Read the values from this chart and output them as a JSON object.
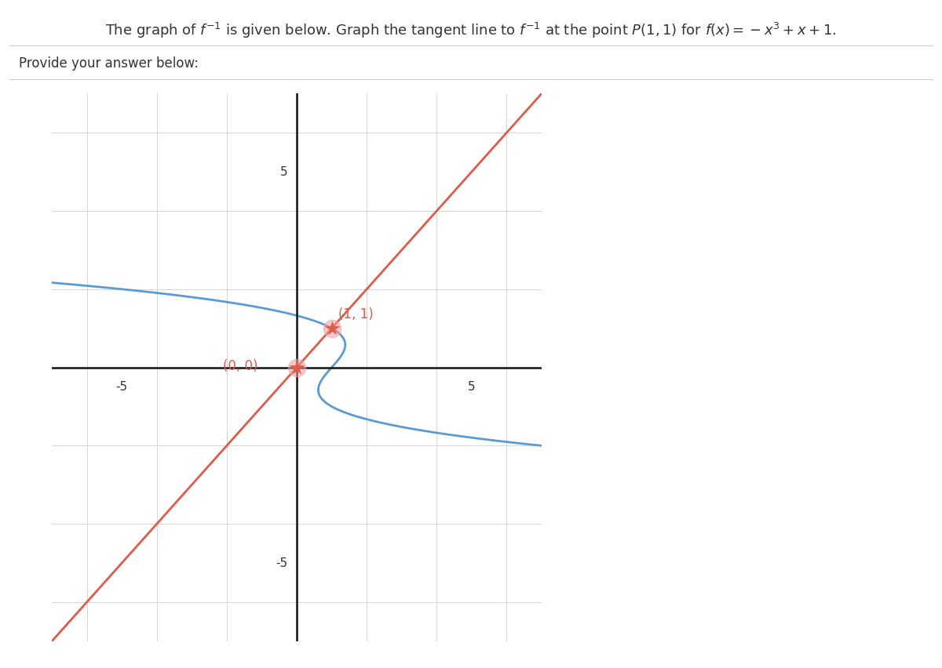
{
  "title_text": "The graph of $f^{-1}$ is given below. Graph the tangent line to $f^{-1}$ at the point $P(1, 1)$ for $f(x) = -x^3 + x + 1$.",
  "subtitle_text": "Provide your answer below:",
  "xlim": [
    -7,
    7
  ],
  "ylim": [
    -7,
    7
  ],
  "xtick_vals": [
    -5,
    5
  ],
  "ytick_vals": [
    -5,
    5
  ],
  "background_color": "#ffffff",
  "grid_color": "#d0d0d0",
  "curve_color": "#5b9bd5",
  "tangent_color": "#e05a4a",
  "point_color": "#e05a4a",
  "point_halo_color": "#f0a0a0",
  "point1": [
    0,
    0
  ],
  "point2": [
    1,
    1
  ],
  "tangent_slope": 1.0,
  "tangent_intercept": 0.0,
  "curve_linewidth": 2.0,
  "tangent_linewidth": 2.0,
  "axis_color": "#111111",
  "tick_fontsize": 11,
  "title_fontsize": 13,
  "subtitle_fontsize": 12,
  "point_label1": "(0, 0)",
  "point_label2": "(1, 1)",
  "point_label_fontsize": 12
}
